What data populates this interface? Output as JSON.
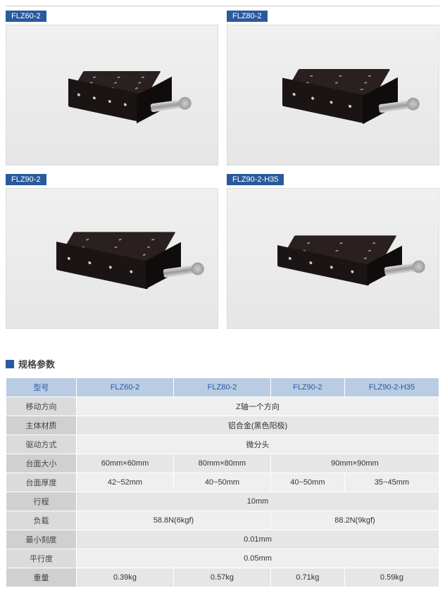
{
  "products": [
    {
      "label": "FLZ60-2"
    },
    {
      "label": "FLZ80-2"
    },
    {
      "label": "FLZ90-2"
    },
    {
      "label": "FLZ90-2-H35"
    }
  ],
  "section_title": "规格参数",
  "table": {
    "header_label": "型号",
    "models": [
      "FLZ60-2",
      "FLZ80-2",
      "FLZ90-2",
      "FLZ90-2-H35"
    ],
    "rows": [
      {
        "label": "移动方向",
        "spans": [
          {
            "colspan": 4,
            "text": "Z轴一个方向"
          }
        ]
      },
      {
        "label": "主体材质",
        "spans": [
          {
            "colspan": 4,
            "text": "铝合金(黑色阳极)"
          }
        ]
      },
      {
        "label": "驱动方式",
        "spans": [
          {
            "colspan": 4,
            "text": "微分头"
          }
        ]
      },
      {
        "label": "台面大小",
        "spans": [
          {
            "colspan": 1,
            "text": "60mm×60mm"
          },
          {
            "colspan": 1,
            "text": "80mm×80mm"
          },
          {
            "colspan": 2,
            "text": "90mm×90mm"
          }
        ]
      },
      {
        "label": "台面厚度",
        "spans": [
          {
            "colspan": 1,
            "text": "42~52mm"
          },
          {
            "colspan": 1,
            "text": "40~50mm"
          },
          {
            "colspan": 1,
            "text": "40~50mm"
          },
          {
            "colspan": 1,
            "text": "35~45mm"
          }
        ]
      },
      {
        "label": "行程",
        "spans": [
          {
            "colspan": 4,
            "text": "10mm"
          }
        ]
      },
      {
        "label": "负载",
        "spans": [
          {
            "colspan": 2,
            "text": "58.8N(6kgf)"
          },
          {
            "colspan": 2,
            "text": "88.2N(9kgf)"
          }
        ]
      },
      {
        "label": "最小刻度",
        "spans": [
          {
            "colspan": 4,
            "text": "0.01mm"
          }
        ]
      },
      {
        "label": "平行度",
        "spans": [
          {
            "colspan": 4,
            "text": "0.05mm"
          }
        ]
      },
      {
        "label": "重量",
        "spans": [
          {
            "colspan": 1,
            "text": "0.39kg"
          },
          {
            "colspan": 1,
            "text": "0.57kg"
          },
          {
            "colspan": 1,
            "text": "0.71kg"
          },
          {
            "colspan": 1,
            "text": "0.59kg"
          }
        ]
      }
    ]
  },
  "colors": {
    "brand": "#2a5a9e",
    "header_bg": "#b9cce2",
    "row_label_bg": "#dbdbdb",
    "cell_bg": "#efefef"
  }
}
